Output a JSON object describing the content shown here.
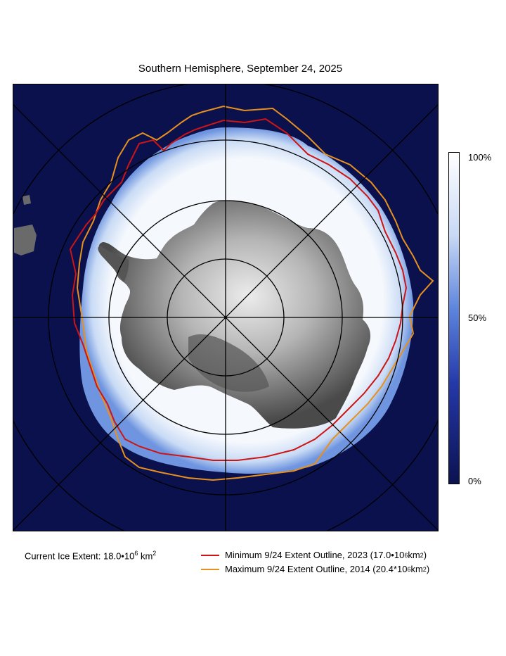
{
  "title": "Southern Hemisphere, September 24, 2025",
  "colorbar": {
    "ticks": [
      "100%",
      "50%",
      "0%"
    ],
    "colors": {
      "high": "#ffffff",
      "mid": "#2f55c8",
      "low": "#0b1250"
    }
  },
  "current_extent": {
    "label": "Current Ice Extent: 18.0",
    "mantissa_sep": "•10",
    "exp": "6",
    "unit": " km",
    "unit_exp": "2"
  },
  "legend": [
    {
      "text": "Minimum 9/24 Extent Outline,  2023 (17.0",
      "sep": "•10",
      "exp": "6",
      "unit": " km",
      "unit_exp": "2",
      "close": ")",
      "color": "#cc1515"
    },
    {
      "text": "Maximum 9/24 Extent Outline, 2014 (20.4",
      "sep": "*10",
      "exp": "6",
      "unit": " km",
      "unit_exp": "2",
      "close": ")",
      "color": "#e8901e"
    }
  ],
  "map": {
    "ocean_color": "#0a114d",
    "ice_color": "#f2f6fc",
    "ice_edge_color": "#7ea4ea",
    "land_dark": "#4a4a4a",
    "land_light": "#e8e8e8",
    "graticule_color": "#000000"
  }
}
